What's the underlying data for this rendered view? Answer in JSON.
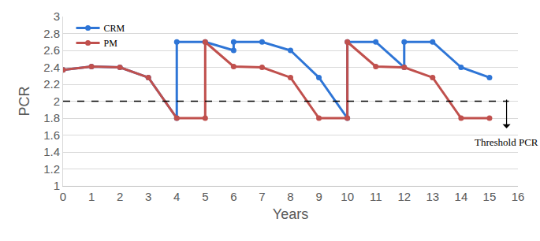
{
  "chart_data": {
    "type": "line",
    "x_label": "Years",
    "y_label": "PCR",
    "xlim": [
      0,
      16
    ],
    "xticks": [
      0,
      1,
      2,
      3,
      4,
      5,
      6,
      7,
      8,
      9,
      10,
      11,
      12,
      13,
      14,
      15,
      16
    ],
    "ylim": [
      1,
      3
    ],
    "yticks": [
      1,
      1.2,
      1.4,
      1.6,
      1.8,
      2,
      2.2,
      2.4,
      2.6,
      2.8,
      3
    ],
    "grid": true,
    "legend": "upper left",
    "series": [
      {
        "name": "CRM",
        "color": "#2e75d6",
        "marker": "circle",
        "x": [
          0,
          1,
          2,
          3,
          4,
          4,
          5,
          6,
          6,
          7,
          8,
          9,
          10,
          10,
          11,
          12,
          12,
          13,
          14,
          15
        ],
        "values": [
          2.37,
          2.41,
          2.4,
          2.28,
          1.8,
          2.7,
          2.7,
          2.6,
          2.7,
          2.7,
          2.6,
          2.28,
          1.8,
          2.7,
          2.7,
          2.4,
          2.7,
          2.7,
          2.4,
          2.28
        ]
      },
      {
        "name": "PM",
        "color": "#c0504d",
        "marker": "circle",
        "x": [
          0,
          1,
          2,
          3,
          4,
          5,
          5,
          6,
          7,
          8,
          9,
          10,
          10,
          11,
          12,
          13,
          14,
          15
        ],
        "values": [
          2.37,
          2.41,
          2.4,
          2.28,
          1.8,
          1.8,
          2.7,
          2.41,
          2.4,
          2.28,
          1.8,
          1.8,
          2.7,
          2.41,
          2.4,
          2.28,
          1.8,
          1.8
        ]
      }
    ],
    "threshold": {
      "value": 2,
      "label": "Threshold PCR",
      "line_style": "dashed"
    }
  }
}
